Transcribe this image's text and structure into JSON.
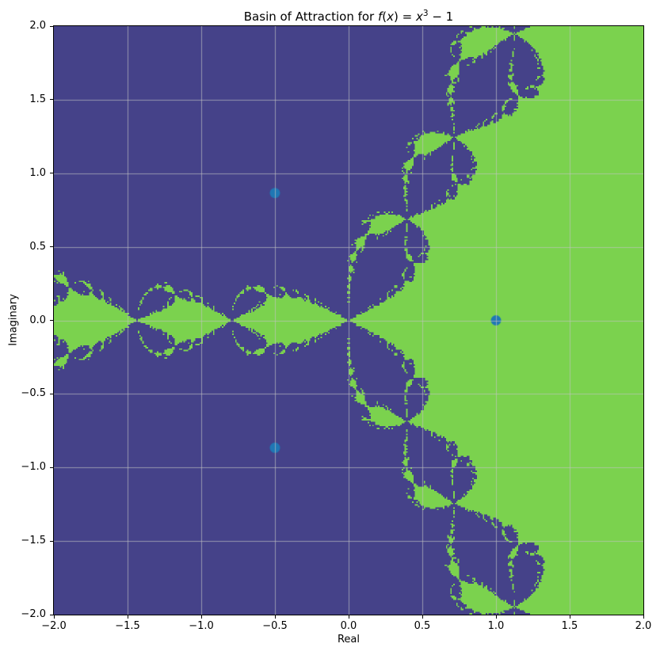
{
  "figure": {
    "title": {
      "prefix": "Basin of Attraction for ",
      "f": "f",
      "lparen": "(",
      "x_arg": "x",
      "mid": ") = ",
      "x_base": "x",
      "exponent": "3",
      "tail": " − 1"
    }
  },
  "chart_data": {
    "type": "heatmap",
    "subtype": "newton-fractal-basins-of-attraction",
    "title": "Basin of Attraction for f(x) = x³ − 1",
    "function": "f(x) = x^3 - 1",
    "xlabel": "Real",
    "ylabel": "Imaginary",
    "xlim": [
      -2.0,
      2.0
    ],
    "ylim": [
      -2.0,
      2.0
    ],
    "xticks": [
      -2.0,
      -1.5,
      -1.0,
      -0.5,
      0.0,
      0.5,
      1.0,
      1.5,
      2.0
    ],
    "xtick_labels": [
      "−2.0",
      "−1.5",
      "−1.0",
      "−0.5",
      "0.0",
      "0.5",
      "1.0",
      "1.5",
      "2.0"
    ],
    "yticks": [
      -2.0,
      -1.5,
      -1.0,
      -0.5,
      0.0,
      0.5,
      1.0,
      1.5,
      2.0
    ],
    "ytick_labels": [
      "−2.0",
      "−1.5",
      "−1.0",
      "−0.5",
      "0.0",
      "0.5",
      "1.0",
      "1.5",
      "2.0"
    ],
    "grid": true,
    "grid_color_rgba": [
      195,
      195,
      195,
      0.65
    ],
    "basin_colors": {
      "real_root": "#7bd24e",
      "complex_roots": "#454289"
    },
    "roots": [
      {
        "re": 1.0,
        "im": 0.0
      },
      {
        "re": -0.5,
        "im": 0.8660254
      },
      {
        "re": -0.5,
        "im": -0.8660254
      }
    ],
    "root_markers": {
      "color": "#1f77b4",
      "radius_px": 6.5
    },
    "newton": {
      "max_iter": 60,
      "resolution": 400
    }
  }
}
